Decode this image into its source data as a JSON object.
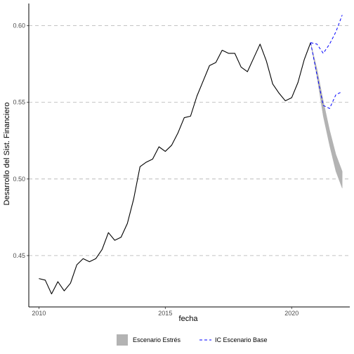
{
  "chart_data": {
    "type": "line",
    "title": "",
    "xlabel": "fecha",
    "ylabel": "Desarrollo del Sist. Financiero",
    "xlim": [
      2009.6,
      2022.3
    ],
    "ylim": [
      0.4165,
      0.6145
    ],
    "x_ticks": [
      2010,
      2015,
      2020
    ],
    "x_tick_labels": [
      "2010",
      "2015",
      "2020"
    ],
    "y_ticks": [
      0.45,
      0.5,
      0.55,
      0.6
    ],
    "y_tick_labels": [
      "0.45",
      "0.50",
      "0.55",
      "0.60"
    ],
    "grid": "horizontal dashed at major y ticks",
    "legend_position": "bottom",
    "series": [
      {
        "type": "line",
        "color": "#000000",
        "points": [
          [
            2010.0,
            0.435
          ],
          [
            2010.25,
            0.434
          ],
          [
            2010.5,
            0.425
          ],
          [
            2010.75,
            0.433
          ],
          [
            2011.0,
            0.427
          ],
          [
            2011.25,
            0.432
          ],
          [
            2011.5,
            0.444
          ],
          [
            2011.75,
            0.448
          ],
          [
            2012.0,
            0.446
          ],
          [
            2012.25,
            0.448
          ],
          [
            2012.5,
            0.454
          ],
          [
            2012.75,
            0.465
          ],
          [
            2013.0,
            0.46
          ],
          [
            2013.25,
            0.462
          ],
          [
            2013.5,
            0.471
          ],
          [
            2013.75,
            0.487
          ],
          [
            2014.0,
            0.508
          ],
          [
            2014.25,
            0.511
          ],
          [
            2014.5,
            0.513
          ],
          [
            2014.75,
            0.521
          ],
          [
            2015.0,
            0.518
          ],
          [
            2015.25,
            0.522
          ],
          [
            2015.5,
            0.53
          ],
          [
            2015.75,
            0.54
          ],
          [
            2016.0,
            0.541
          ],
          [
            2016.25,
            0.554
          ],
          [
            2016.5,
            0.564
          ],
          [
            2016.75,
            0.574
          ],
          [
            2017.0,
            0.576
          ],
          [
            2017.25,
            0.584
          ],
          [
            2017.5,
            0.582
          ],
          [
            2017.75,
            0.582
          ],
          [
            2018.0,
            0.573
          ],
          [
            2018.25,
            0.57
          ],
          [
            2018.5,
            0.579
          ],
          [
            2018.75,
            0.588
          ],
          [
            2019.0,
            0.577
          ],
          [
            2019.25,
            0.562
          ],
          [
            2019.5,
            0.556
          ],
          [
            2019.75,
            0.551
          ],
          [
            2020.0,
            0.553
          ],
          [
            2020.25,
            0.563
          ],
          [
            2020.5,
            0.578
          ],
          [
            2020.75,
            0.589
          ]
        ]
      },
      {
        "name": "Escenario Estrés",
        "type": "band",
        "color": "#b3b3b3",
        "x": [
          2020.75,
          2021.0,
          2021.25,
          2021.5,
          2021.75,
          2022.0
        ],
        "upper": [
          0.589,
          0.572,
          0.551,
          0.532,
          0.516,
          0.505
        ],
        "lower": [
          0.589,
          0.567,
          0.541,
          0.522,
          0.505,
          0.494
        ]
      },
      {
        "name": "IC Escenario Base",
        "type": "dashed",
        "color": "#0000ff",
        "upper_points": [
          [
            2020.75,
            0.589
          ],
          [
            2021.0,
            0.588
          ],
          [
            2021.25,
            0.582
          ],
          [
            2021.5,
            0.588
          ],
          [
            2021.75,
            0.596
          ],
          [
            2022.0,
            0.607
          ]
        ],
        "lower_points": [
          [
            2020.75,
            0.589
          ],
          [
            2021.0,
            0.568
          ],
          [
            2021.25,
            0.548
          ],
          [
            2021.5,
            0.546
          ],
          [
            2021.75,
            0.555
          ],
          [
            2022.0,
            0.557
          ]
        ]
      }
    ],
    "legend": [
      {
        "label": "Escenario Estrés",
        "symbol": "fill",
        "color": "#b3b3b3"
      },
      {
        "label": "IC Escenario Base",
        "symbol": "dashed",
        "color": "#0000ff"
      }
    ]
  }
}
